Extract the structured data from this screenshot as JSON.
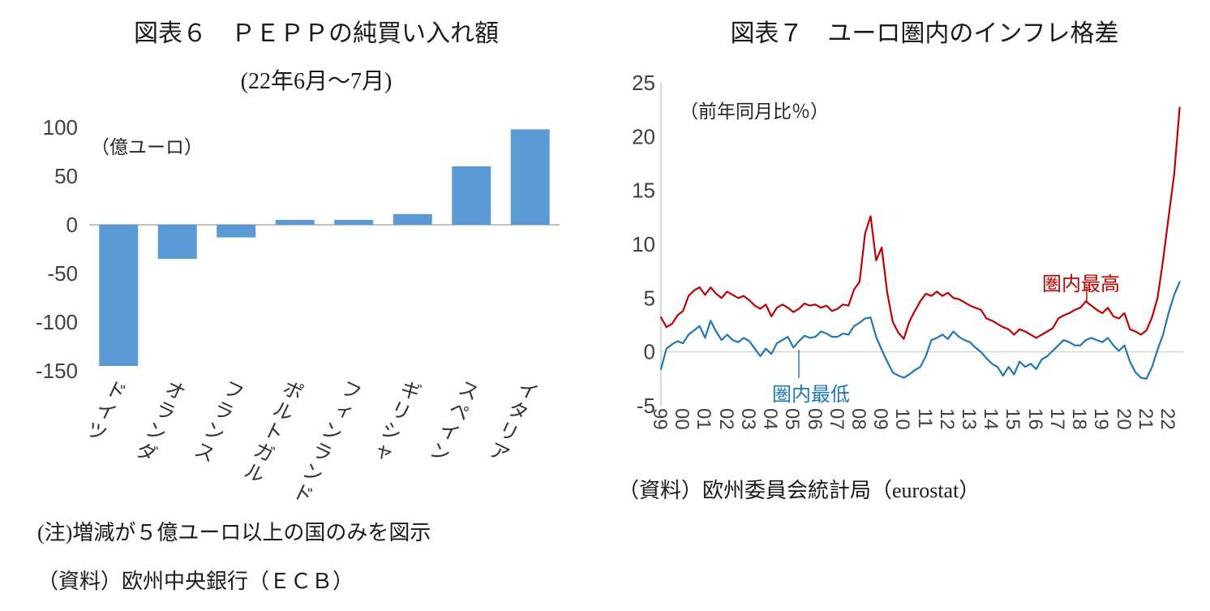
{
  "chart_data": [
    {
      "type": "bar",
      "title": "図表６　ＰＥＰＰの純買い入れ額",
      "subtitle": "(22年6月～7月)",
      "ylabel": "（億ユーロ）",
      "note": "(注)増減が５億ユーロ以上の国のみを図示",
      "source": "（資料）欧州中央銀行（ＥＣＢ）",
      "categories": [
        "ドイツ",
        "オランダ",
        "フランス",
        "ポルトガル",
        "フィンランド",
        "ギリシャ",
        "スペイン",
        "イタリア"
      ],
      "values": [
        -145,
        -35,
        -13,
        5,
        5,
        11,
        60,
        98
      ],
      "ylim": [
        -150,
        100
      ],
      "yticks": [
        100,
        50,
        0,
        -50,
        -100,
        -150
      ],
      "bar_color": "#5B9BD5",
      "grid": false
    },
    {
      "type": "line",
      "title": "図表７　ユーロ圏内のインフレ格差",
      "ylabel": "（前年同月比％）",
      "source": "（資料）欧州委員会統計局（eurostat）",
      "x_start": 1999,
      "x_step": 0.25,
      "x_axis_end": 2022.7,
      "xtick_labels": [
        "99",
        "00",
        "01",
        "02",
        "03",
        "04",
        "05",
        "06",
        "07",
        "08",
        "09",
        "10",
        "11",
        "12",
        "13",
        "14",
        "15",
        "16",
        "17",
        "18",
        "19",
        "20",
        "21",
        "22"
      ],
      "ylim": [
        -5,
        25
      ],
      "yticks": [
        25,
        20,
        15,
        10,
        5,
        0,
        -5
      ],
      "grid": false,
      "legend_position": "inline-annotations",
      "series": [
        {
          "name": "圏内最高",
          "color": "#C00000",
          "values": [
            3.2,
            2.3,
            2.6,
            3.4,
            3.8,
            5.2,
            5.7,
            6.0,
            5.3,
            6.0,
            5.4,
            5.0,
            5.6,
            5.3,
            5.0,
            5.2,
            4.8,
            4.3,
            4.0,
            4.4,
            3.3,
            4.1,
            4.4,
            4.1,
            3.7,
            4.0,
            4.5,
            4.3,
            4.4,
            4.1,
            4.3,
            3.8,
            4.0,
            4.4,
            4.3,
            5.8,
            6.5,
            11.0,
            12.6,
            8.5,
            9.7,
            5.5,
            2.8,
            1.8,
            1.2,
            2.8,
            3.8,
            4.7,
            5.4,
            5.2,
            5.6,
            5.2,
            5.5,
            5.0,
            4.9,
            4.6,
            4.3,
            4.1,
            3.9,
            3.1,
            2.9,
            2.6,
            2.3,
            2.1,
            1.6,
            2.1,
            1.9,
            1.6,
            1.3,
            1.6,
            1.9,
            2.2,
            3.1,
            3.4,
            3.6,
            3.9,
            4.1,
            4.7,
            4.3,
            3.9,
            3.6,
            4.1,
            3.3,
            3.1,
            3.6,
            2.1,
            1.9,
            1.6,
            2.0,
            3.2,
            5.0,
            8.5,
            12.5,
            16.5,
            22.7
          ]
        },
        {
          "name": "圏内最低",
          "color": "#1F77B4",
          "values": [
            -1.6,
            0.3,
            0.7,
            1.0,
            0.8,
            1.6,
            2.0,
            2.4,
            1.3,
            2.9,
            1.9,
            1.1,
            1.6,
            1.1,
            0.9,
            1.3,
            1.0,
            0.3,
            -0.4,
            0.3,
            -0.2,
            0.8,
            1.1,
            1.4,
            0.4,
            1.0,
            1.5,
            1.3,
            1.4,
            1.9,
            1.7,
            1.4,
            1.4,
            1.7,
            1.6,
            2.4,
            2.7,
            3.1,
            3.2,
            1.4,
            0.2,
            -0.9,
            -1.9,
            -2.2,
            -2.4,
            -2.1,
            -1.7,
            -1.4,
            -0.4,
            1.1,
            1.3,
            1.6,
            1.2,
            1.9,
            1.4,
            1.1,
            0.9,
            0.4,
            0.0,
            -0.6,
            -1.1,
            -1.4,
            -2.2,
            -1.4,
            -2.1,
            -0.9,
            -1.4,
            -1.1,
            -1.6,
            -0.7,
            -0.4,
            0.1,
            0.6,
            1.1,
            0.9,
            0.6,
            0.6,
            1.1,
            1.3,
            1.1,
            0.9,
            1.3,
            0.6,
            0.1,
            0.6,
            -0.9,
            -1.9,
            -2.4,
            -2.5,
            -1.4,
            0.2,
            1.6,
            3.6,
            5.3,
            6.5
          ]
        }
      ]
    }
  ]
}
